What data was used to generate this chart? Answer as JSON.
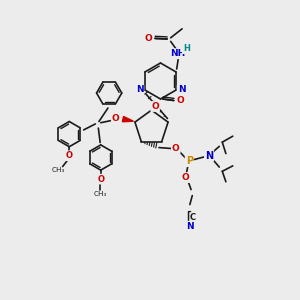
{
  "bg": "#ececec",
  "bc": "#1a1a1a",
  "Nc": "#0000cc",
  "Oc": "#cc0000",
  "Pc": "#cc8800",
  "Hc": "#008888",
  "figsize": [
    3.0,
    3.0
  ],
  "dpi": 100,
  "xlim": [
    0,
    10
  ],
  "ylim": [
    0,
    10
  ]
}
